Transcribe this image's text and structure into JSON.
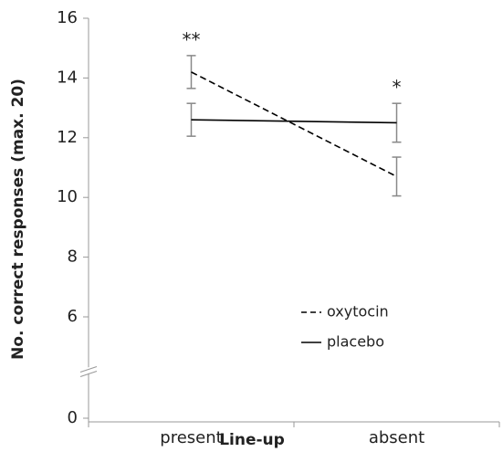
{
  "chart_data": {
    "type": "line",
    "xlabel": "Line-up",
    "ylabel": "No. correct responses (max. 20)",
    "categories": [
      "present",
      "absent"
    ],
    "series": [
      {
        "name": "oxytocin",
        "color": "#000000",
        "dash": true,
        "values": [
          14.2,
          10.7
        ],
        "errors": [
          0.55,
          0.65
        ]
      },
      {
        "name": "placebo",
        "color": "#000000",
        "dash": false,
        "values": [
          12.6,
          12.5
        ],
        "errors": [
          0.55,
          0.65
        ]
      }
    ],
    "annotations": [
      "**",
      "*"
    ],
    "ylim": [
      0,
      16
    ],
    "yticks": [
      0,
      6,
      8,
      10,
      12,
      14,
      16
    ],
    "axis_break": true,
    "error_color": "#888888",
    "legend": "lower right"
  }
}
